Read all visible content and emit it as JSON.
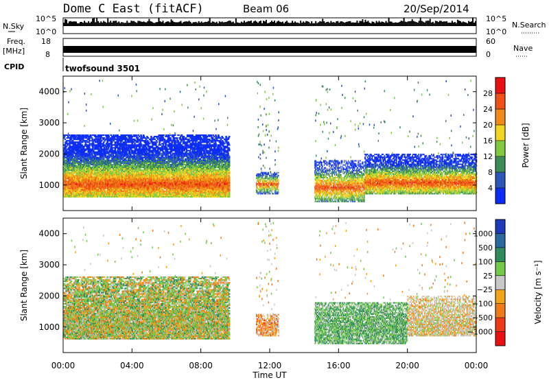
{
  "header": {
    "radar": "Dome C East (fitACF)",
    "beam": "Beam 06",
    "date": "20/Sep/2014"
  },
  "top_panels": {
    "nsky_label": "N.Sky",
    "nsky_ticks": [
      "10^5",
      "10^0"
    ],
    "nsearch_label": "N.Search",
    "nsearch_ticks": [
      "10^5",
      "10^0"
    ],
    "freq_label": "Freq.",
    "freq_unit": "[MHz]",
    "freq_ticks": [
      "18",
      "8"
    ],
    "nave_label": "Nave",
    "nave_ticks": [
      "60",
      "0"
    ],
    "cpid_label": "CPID",
    "cpid_value": "twofsound 3501"
  },
  "chart_data": [
    {
      "type": "heatmap",
      "title": "",
      "xlabel": "Time UT",
      "ylabel": "Slant Range [km]",
      "x_ticks": [
        "00:00",
        "04:00",
        "08:00",
        "12:00",
        "16:00",
        "20:00",
        "00:00"
      ],
      "x_range_hours": [
        0,
        24
      ],
      "y_ticks": [
        1000,
        2000,
        3000,
        4000
      ],
      "ylim": [
        180,
        4500
      ],
      "colorbar": {
        "label": "Power [dB]",
        "ticks": [
          "4",
          "8",
          "12",
          "16",
          "20",
          "24",
          "28"
        ],
        "colors": [
          "#0b2cf5",
          "#2a57b8",
          "#3c8c5a",
          "#7fc943",
          "#f1d520",
          "#f08a18",
          "#ee5015",
          "#e81010"
        ]
      },
      "echo_bands": [
        {
          "t_start": 0.0,
          "t_end": 9.6,
          "range_min": 600,
          "range_max": 2600,
          "peak_range": 1000,
          "peak_power_db": 28
        },
        {
          "t_start": 11.2,
          "t_end": 12.5,
          "range_min": 700,
          "range_max": 1400,
          "peak_range": 1000,
          "peak_power_db": 24
        },
        {
          "t_start": 14.6,
          "t_end": 17.5,
          "range_min": 450,
          "range_max": 1800,
          "peak_range": 900,
          "peak_power_db": 28
        },
        {
          "t_start": 17.5,
          "t_end": 24.0,
          "range_min": 700,
          "range_max": 2000,
          "peak_range": 1050,
          "peak_power_db": 26
        }
      ]
    },
    {
      "type": "heatmap",
      "title": "",
      "xlabel": "Time UT",
      "ylabel": "Slant Range [km]",
      "x_ticks": [
        "00:00",
        "04:00",
        "08:00",
        "12:00",
        "16:00",
        "20:00",
        "00:00"
      ],
      "x_range_hours": [
        0,
        24
      ],
      "y_ticks": [
        1000,
        2000,
        3000,
        4000
      ],
      "ylim": [
        180,
        4500
      ],
      "colorbar": {
        "label": "Velocity [m s⁻¹]",
        "ticks": [
          "1000",
          "500",
          "100",
          "25",
          "−25",
          "−100",
          "−500",
          "−1000"
        ],
        "colors": [
          "#1c3bb8",
          "#2b6a9c",
          "#2f8a5c",
          "#73c94a",
          "#c8c8c8",
          "#f3a21c",
          "#f07a18",
          "#ee3a14",
          "#e81010"
        ]
      },
      "echo_bands": [
        {
          "t_start": 0.0,
          "t_end": 9.6,
          "range_min": 600,
          "range_max": 2600,
          "dominant_velocity": "green / orange"
        },
        {
          "t_start": 11.2,
          "t_end": 12.5,
          "range_min": 700,
          "range_max": 1400,
          "dominant_velocity": "orange"
        },
        {
          "t_start": 14.6,
          "t_end": 20.0,
          "range_min": 450,
          "range_max": 1800,
          "dominant_velocity": "dark green"
        },
        {
          "t_start": 20.0,
          "t_end": 24.0,
          "range_min": 700,
          "range_max": 2000,
          "dominant_velocity": "orange / grey"
        }
      ]
    }
  ]
}
